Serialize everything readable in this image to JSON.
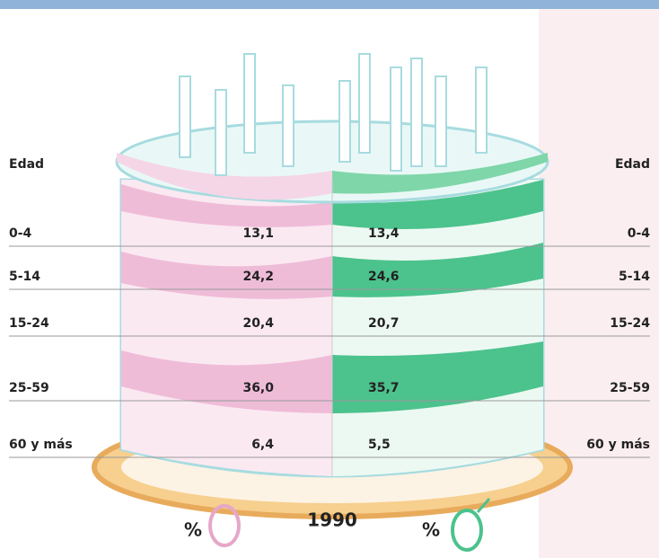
{
  "header": {
    "left": "Edad",
    "right": "Edad"
  },
  "rows": [
    {
      "age": "0-4",
      "female": "13,1",
      "male": "13,4"
    },
    {
      "age": "5-14",
      "female": "24,2",
      "male": "24,6"
    },
    {
      "age": "15-24",
      "female": "20,4",
      "male": "20,7"
    },
    {
      "age": "25-59",
      "female": "36,0",
      "male": "35,7"
    },
    {
      "age": "60 y más",
      "female": "6,4",
      "male": "5,5"
    }
  ],
  "footer": {
    "female_unit": "%",
    "year": "1990",
    "male_unit": "%"
  }
}
